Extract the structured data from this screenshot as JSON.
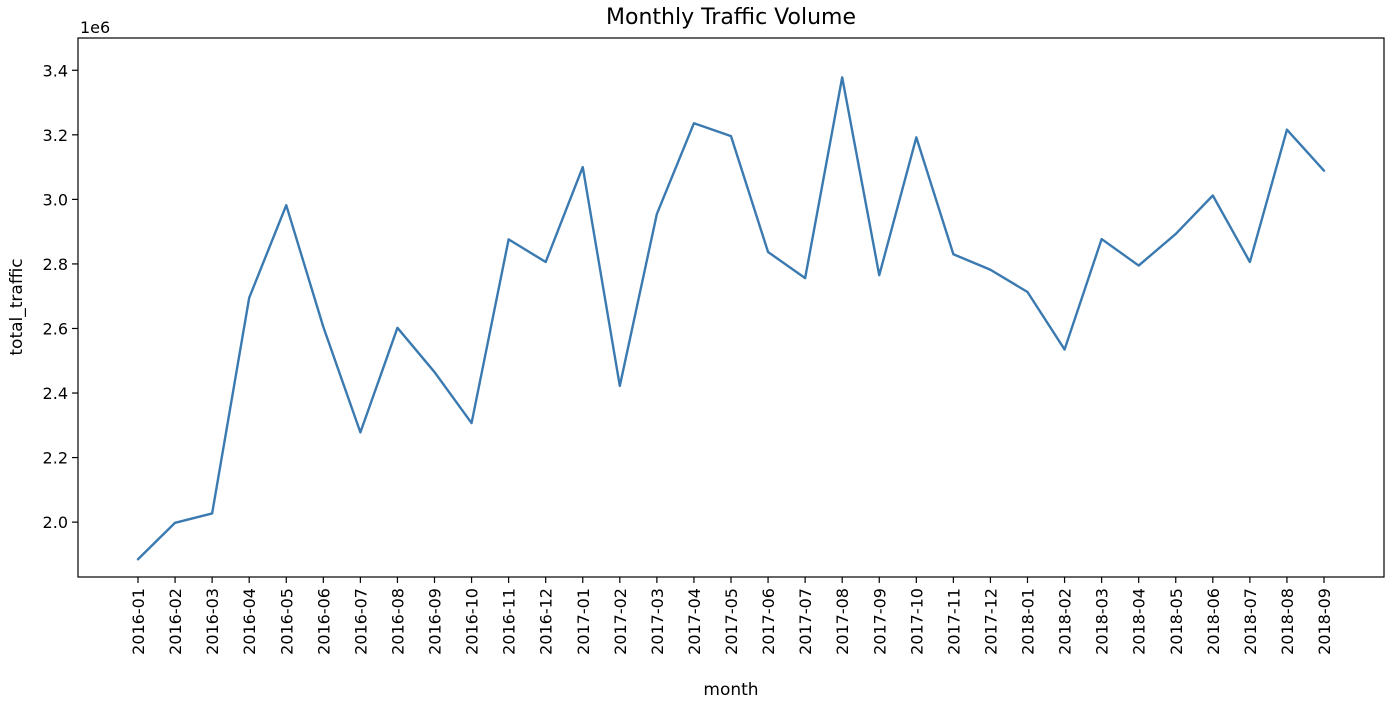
{
  "chart_data": {
    "type": "line",
    "title": "Monthly Traffic Volume",
    "xlabel": "month",
    "ylabel": "total_traffic",
    "y_offset_label": "1e6",
    "y_scale_factor": 1000000,
    "ylim": [
      1.83,
      3.5
    ],
    "yticks": [
      2.0,
      2.2,
      2.4,
      2.6,
      2.8,
      3.0,
      3.2,
      3.4
    ],
    "ytick_labels": [
      "2.0",
      "2.2",
      "2.4",
      "2.6",
      "2.8",
      "3.0",
      "3.2",
      "3.4"
    ],
    "grid": false,
    "line_color": "#3a7ab0",
    "categories": [
      "2016-01",
      "2016-02",
      "2016-03",
      "2016-04",
      "2016-05",
      "2016-06",
      "2016-07",
      "2016-08",
      "2016-09",
      "2016-10",
      "2016-11",
      "2016-12",
      "2017-01",
      "2017-02",
      "2017-03",
      "2017-04",
      "2017-05",
      "2017-06",
      "2017-07",
      "2017-08",
      "2017-09",
      "2017-10",
      "2017-11",
      "2017-12",
      "2018-01",
      "2018-02",
      "2018-03",
      "2018-04",
      "2018-05",
      "2018-06",
      "2018-07",
      "2018-08",
      "2018-09"
    ],
    "values": [
      1.885,
      1.998,
      2.027,
      2.695,
      2.982,
      2.605,
      2.278,
      2.602,
      2.465,
      2.307,
      2.876,
      2.806,
      3.1,
      2.422,
      2.955,
      3.236,
      3.196,
      2.837,
      2.756,
      3.378,
      2.765,
      3.192,
      2.83,
      2.782,
      2.713,
      2.535,
      2.877,
      2.795,
      2.893,
      3.012,
      2.806,
      3.216,
      3.089
    ]
  }
}
